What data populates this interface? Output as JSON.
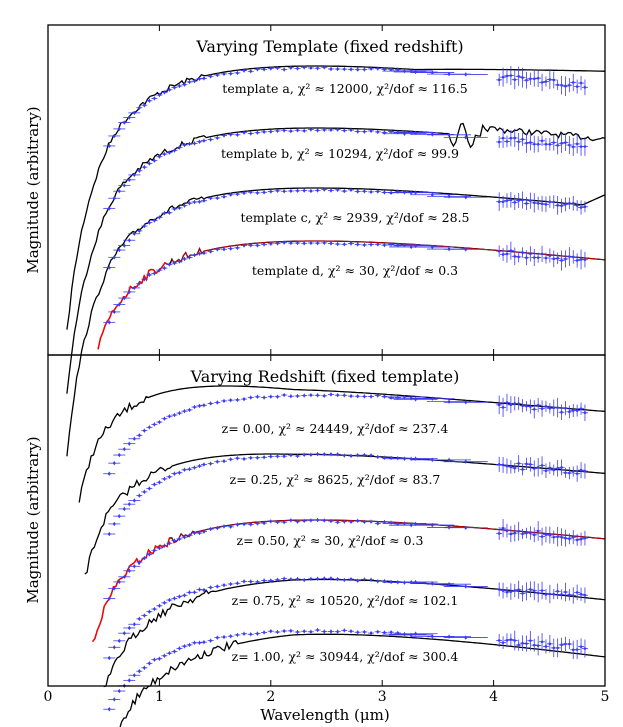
{
  "chart_data": [
    {
      "type": "line",
      "title": "Varying Template (fixed redshift)",
      "ylabel": "Magnitude (arbitrary)",
      "xlim": [
        0,
        5
      ],
      "annotations": [
        "template a,  χ² ≈ 12000, χ²/dof ≈ 116.5",
        "template b,  χ² ≈ 10294, χ²/dof ≈ 99.9",
        "template c,  χ² ≈ 2939, χ²/dof ≈ 28.5",
        "template d,  χ² ≈ 30, χ²/dof ≈ 0.3"
      ],
      "series": [
        {
          "name": "template a",
          "chi2": 12000,
          "chi2_dof": 116.5,
          "best_fit": false
        },
        {
          "name": "template b",
          "chi2": 10294,
          "chi2_dof": 99.9,
          "best_fit": false
        },
        {
          "name": "template c",
          "chi2": 2939,
          "chi2_dof": 28.5,
          "best_fit": false
        },
        {
          "name": "template d",
          "chi2": 30,
          "chi2_dof": 0.3,
          "best_fit": true
        }
      ]
    },
    {
      "type": "line",
      "title": "Varying Redshift (fixed template)",
      "xlabel": "Wavelength (μm)",
      "ylabel": "Magnitude (arbitrary)",
      "xlim": [
        0,
        5
      ],
      "xticks": [
        "0",
        "1",
        "2",
        "3",
        "4",
        "5"
      ],
      "annotations": [
        "z= 0.00, χ² ≈ 24449, χ²/dof ≈ 237.4",
        "z= 0.25, χ² ≈ 8625, χ²/dof ≈ 83.7",
        "z= 0.50, χ² ≈ 30, χ²/dof ≈ 0.3",
        "z= 0.75, χ² ≈ 10520, χ²/dof ≈ 102.1",
        "z= 1.00, χ² ≈ 30944, χ²/dof ≈ 300.4"
      ],
      "series": [
        {
          "name": "z=0.00",
          "z": 0.0,
          "chi2": 24449,
          "chi2_dof": 237.4,
          "best_fit": false
        },
        {
          "name": "z=0.25",
          "z": 0.25,
          "chi2": 8625,
          "chi2_dof": 83.7,
          "best_fit": false
        },
        {
          "name": "z=0.50",
          "z": 0.5,
          "chi2": 30,
          "chi2_dof": 0.3,
          "best_fit": true
        },
        {
          "name": "z=0.75",
          "z": 0.75,
          "chi2": 10520,
          "chi2_dof": 102.1,
          "best_fit": false
        },
        {
          "name": "z=1.00",
          "z": 1.0,
          "chi2": 30944,
          "chi2_dof": 300.4,
          "best_fit": false
        }
      ]
    }
  ],
  "colors": {
    "model": "#000000",
    "best_fit_model": "#ff0000",
    "data_points": "#3b3bf0"
  }
}
